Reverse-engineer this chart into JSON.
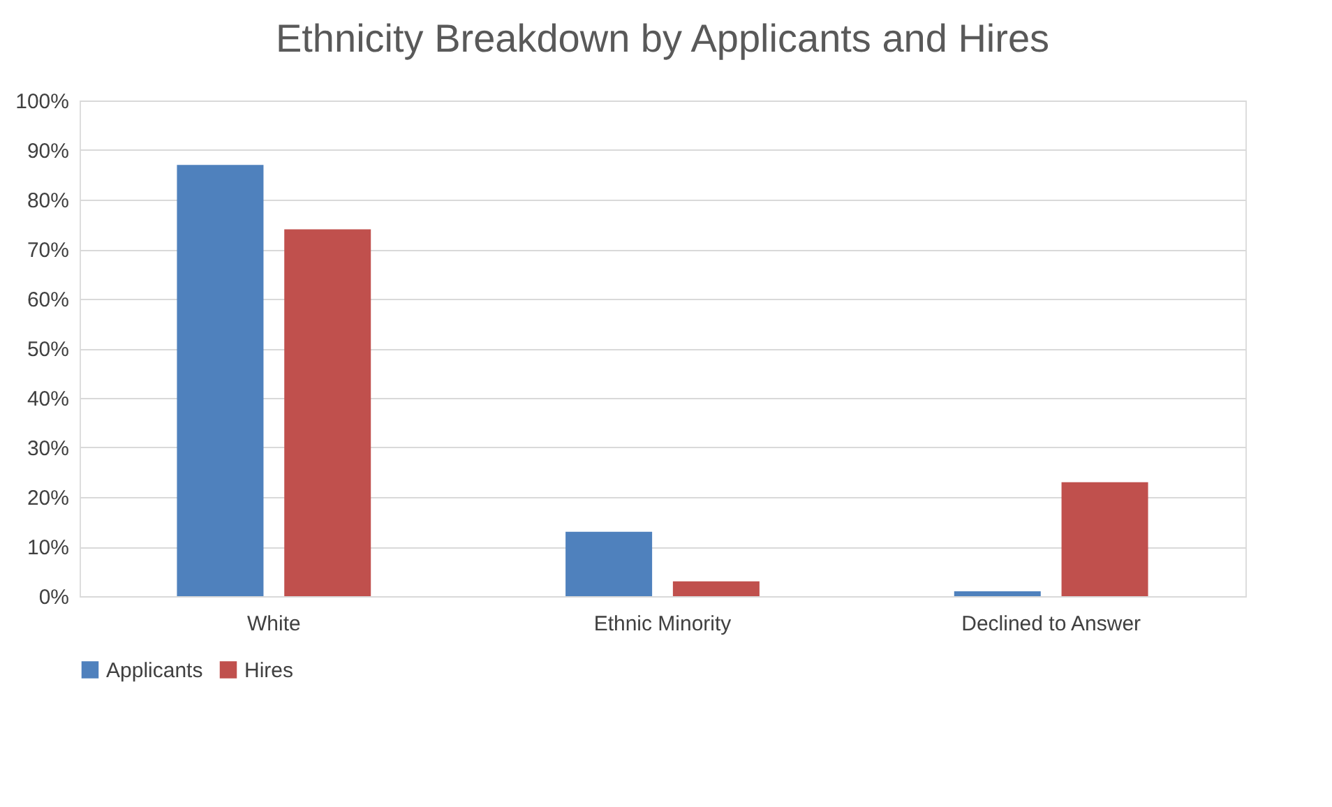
{
  "chart_data": {
    "type": "bar",
    "title": "Ethnicity Breakdown by Applicants and Hires",
    "categories": [
      "White",
      "Ethnic Minority",
      "Declined to Answer"
    ],
    "series": [
      {
        "name": "Applicants",
        "color": "#4f81bd",
        "values": [
          87,
          13,
          1
        ]
      },
      {
        "name": "Hires",
        "color": "#c0504d",
        "values": [
          74,
          3,
          23
        ]
      }
    ],
    "ylim": [
      0,
      100
    ],
    "yticks": [
      {
        "value": 0,
        "label": "0%"
      },
      {
        "value": 10,
        "label": "10%"
      },
      {
        "value": 20,
        "label": "20%"
      },
      {
        "value": 30,
        "label": "30%"
      },
      {
        "value": 40,
        "label": "40%"
      },
      {
        "value": 50,
        "label": "50%"
      },
      {
        "value": 60,
        "label": "60%"
      },
      {
        "value": 70,
        "label": "70%"
      },
      {
        "value": 80,
        "label": "80%"
      },
      {
        "value": 90,
        "label": "90%"
      },
      {
        "value": 100,
        "label": "100%"
      }
    ],
    "grid": "y",
    "legend": "bottom"
  }
}
